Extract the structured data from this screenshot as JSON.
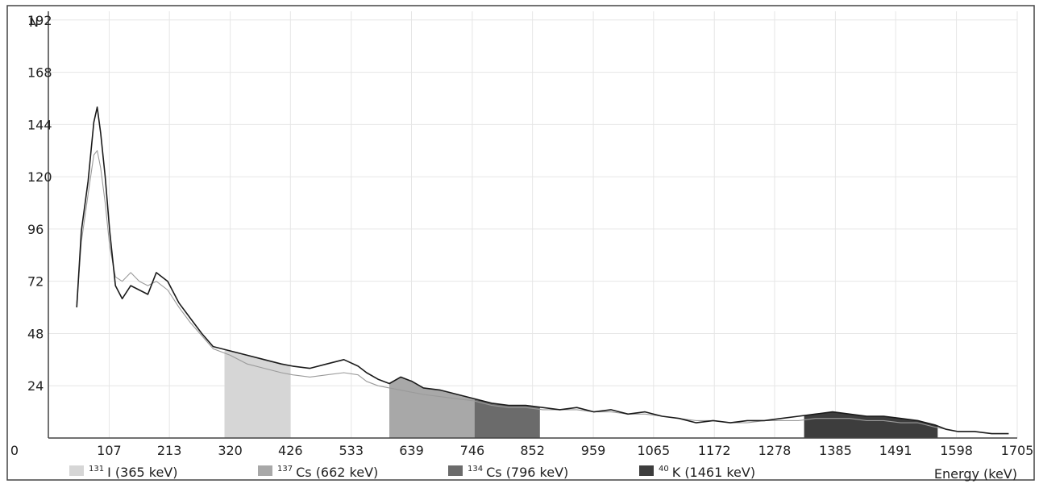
{
  "chart_data": {
    "type": "area",
    "ylabel": "N",
    "xlabel": "Energy (keV)",
    "xlim": [
      0,
      1705
    ],
    "ylim": [
      0,
      196
    ],
    "x_ticks": [
      0,
      107,
      213,
      320,
      426,
      533,
      639,
      746,
      852,
      959,
      1065,
      1172,
      1278,
      1385,
      1491,
      1598,
      1705
    ],
    "y_ticks": [
      24,
      48,
      72,
      96,
      120,
      144,
      168,
      192
    ],
    "grid": true,
    "legend_position": "bottom",
    "colors": {
      "measured": "#1a1a1a",
      "background": "#9a9a9a",
      "i131": "#d6d6d6",
      "cs137": "#a8a8a8",
      "cs134": "#6b6b6b",
      "k40": "#3d3d3d",
      "grid": "#e6e6e6"
    },
    "series": [
      {
        "x": [
          50,
          58,
          70,
          80,
          86,
          92,
          100,
          108,
          118,
          130,
          145,
          160,
          175,
          190,
          210,
          230,
          250,
          270,
          290,
          320,
          350,
          380,
          410,
          430,
          460,
          490,
          520,
          545,
          560,
          580,
          600,
          620,
          640,
          660,
          690,
          720,
          750,
          780,
          810,
          840,
          870,
          900,
          930,
          960,
          990,
          1020,
          1050,
          1080,
          1110,
          1140,
          1170,
          1200,
          1230,
          1260,
          1290,
          1320,
          1350,
          1380,
          1410,
          1440,
          1470,
          1500,
          1530,
          1560,
          1580,
          1600,
          1630,
          1660,
          1690
        ],
        "values": [
          60,
          95,
          118,
          145,
          152,
          140,
          120,
          95,
          70,
          64,
          70,
          68,
          66,
          76,
          72,
          62,
          55,
          48,
          42,
          40,
          38,
          36,
          34,
          33,
          32,
          34,
          36,
          33,
          30,
          27,
          25,
          28,
          26,
          23,
          22,
          20,
          18,
          16,
          15,
          15,
          14,
          13,
          14,
          12,
          13,
          11,
          12,
          10,
          9,
          7,
          8,
          7,
          8,
          8,
          9,
          10,
          11,
          12,
          11,
          10,
          10,
          9,
          8,
          6,
          4,
          3,
          3,
          2,
          2
        ]
      },
      {
        "x": [
          50,
          58,
          70,
          80,
          86,
          92,
          100,
          108,
          118,
          130,
          145,
          160,
          175,
          190,
          210,
          230,
          250,
          270,
          290,
          320,
          350,
          380,
          410,
          430,
          460,
          490,
          520,
          545,
          560,
          580,
          600,
          620,
          640,
          660,
          690,
          720,
          750,
          780,
          810,
          840,
          870,
          900,
          930,
          960,
          990,
          1020,
          1050,
          1080,
          1110,
          1140,
          1170,
          1200,
          1230,
          1260,
          1290,
          1320,
          1350,
          1380,
          1410,
          1440,
          1470,
          1500,
          1530,
          1560,
          1580,
          1600,
          1630,
          1660,
          1690
        ],
        "values": [
          62,
          90,
          112,
          130,
          132,
          124,
          108,
          88,
          74,
          72,
          76,
          72,
          70,
          72,
          68,
          60,
          53,
          47,
          41,
          38,
          34,
          32,
          30,
          29,
          28,
          29,
          30,
          29,
          26,
          24,
          23,
          22,
          21,
          20,
          19,
          18,
          17,
          15,
          14,
          14,
          13,
          13,
          13,
          12,
          12,
          11,
          11,
          10,
          9,
          8,
          8,
          7,
          7,
          8,
          8,
          8,
          9,
          9,
          9,
          8,
          8,
          7,
          7,
          5,
          4,
          3,
          3,
          2,
          2
        ]
      }
    ],
    "regions": [
      {
        "isotope_mass": "131",
        "label": "I (365 keV)",
        "x_start": 310,
        "x_end": 426
      },
      {
        "isotope_mass": "137",
        "label": "Cs (662 keV)",
        "x_start": 600,
        "x_end": 750
      },
      {
        "isotope_mass": "134",
        "label": "Cs (796 keV)",
        "x_start": 750,
        "x_end": 865
      },
      {
        "isotope_mass": "40",
        "label": "K (1461 keV)",
        "x_start": 1330,
        "x_end": 1565
      }
    ]
  }
}
